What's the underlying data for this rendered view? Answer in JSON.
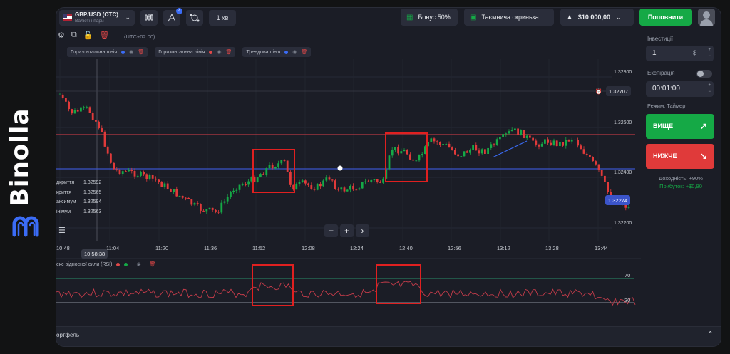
{
  "brand": {
    "name": "Binolla",
    "logo_icon": "binolla-logo-icon"
  },
  "topbar": {
    "pair_name": "GBP/USD (OTC)",
    "pair_subtitle": "Валютні пари",
    "timeframe": "1 хв",
    "indicators_badge": "4",
    "bonus_label": "Бонус 50%",
    "mystery_box_label": "Таємнича скринька",
    "balance": "$10 000,00",
    "deposit_label": "Поповнити"
  },
  "chart": {
    "timezone": "(UTC+02:00)",
    "drawings": [
      {
        "label": "Горизонтальна лінія",
        "color": "#3b6cf6"
      },
      {
        "label": "Горизонтальна лінія",
        "color": "#e04848"
      },
      {
        "label": "Трендова лінія",
        "color": "#3b6cf6"
      }
    ],
    "ohlc": [
      {
        "label": "дкриття",
        "value": "1.32592"
      },
      {
        "label": "криття",
        "value": "1.32565"
      },
      {
        "label": "аксимум",
        "value": "1.32594"
      },
      {
        "label": "інімум",
        "value": "1.32563"
      }
    ],
    "price_ticks": [
      "1.32800",
      "1.32600",
      "1.32400",
      "1.32200"
    ],
    "time_ticks": [
      "10:48",
      "11:04",
      "11:20",
      "11:36",
      "11:52",
      "12:08",
      "12:24",
      "12:40",
      "12:56",
      "13:12",
      "13:28",
      "13:44"
    ],
    "crosshair_time": "10:58:38",
    "crosshair_price": "1.32707",
    "current_price": "1.32274",
    "rsi_title": "екс відносної сили (RSI)",
    "rsi_levels": [
      "70",
      "30"
    ],
    "colors": {
      "up": "#15a946",
      "down": "#e03a3a",
      "support": "#3b54c9",
      "resistance": "#b83a44",
      "rsi": "#c43c4a"
    }
  },
  "portfolio": {
    "label": "ортфель"
  },
  "panel": {
    "investment_label": "Інвестиції",
    "investment_value": "1",
    "investment_unit": "$",
    "expiration_label": "Експірація",
    "expiration_value": "00:01:00",
    "mode_label": "Режим: Таймер",
    "up_label": "ВИЩЕ",
    "down_label": "НИЖЧЕ",
    "yield_label": "Доходність: +90%",
    "profit_label": "Прибуток: +$0,90"
  }
}
